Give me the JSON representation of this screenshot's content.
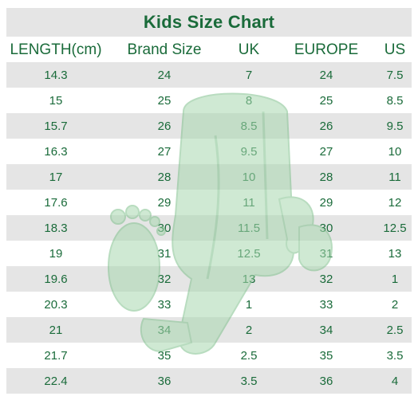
{
  "title": "Kids Size Chart",
  "headers": [
    "LENGTH(cm)",
    "Brand Size",
    "UK",
    "EUROPE",
    "US"
  ],
  "rows": [
    [
      "14.3",
      "24",
      "7",
      "24",
      "7.5"
    ],
    [
      "15",
      "25",
      "8",
      "25",
      "8.5"
    ],
    [
      "15.7",
      "26",
      "8.5",
      "26",
      "9.5"
    ],
    [
      "16.3",
      "27",
      "9.5",
      "27",
      "10"
    ],
    [
      "17",
      "28",
      "10",
      "28",
      "11"
    ],
    [
      "17.6",
      "29",
      "11",
      "29",
      "12"
    ],
    [
      "18.3",
      "30",
      "11.5",
      "30",
      "12.5"
    ],
    [
      "19",
      "31",
      "12.5",
      "31",
      "13"
    ],
    [
      "19.6",
      "32",
      "13",
      "32",
      "1"
    ],
    [
      "20.3",
      "33",
      "1",
      "33",
      "2"
    ],
    [
      "21",
      "34",
      "2",
      "34",
      "2.5"
    ],
    [
      "21.7",
      "35",
      "2.5",
      "35",
      "3.5"
    ],
    [
      "22.4",
      "36",
      "3.5",
      "36",
      "4"
    ]
  ],
  "colors": {
    "text": "#1a6b3a",
    "shade": "#e5e5e5",
    "watermark": "#a8d8b0"
  },
  "watermark_icon": "foot-ruler-mascot-icon"
}
